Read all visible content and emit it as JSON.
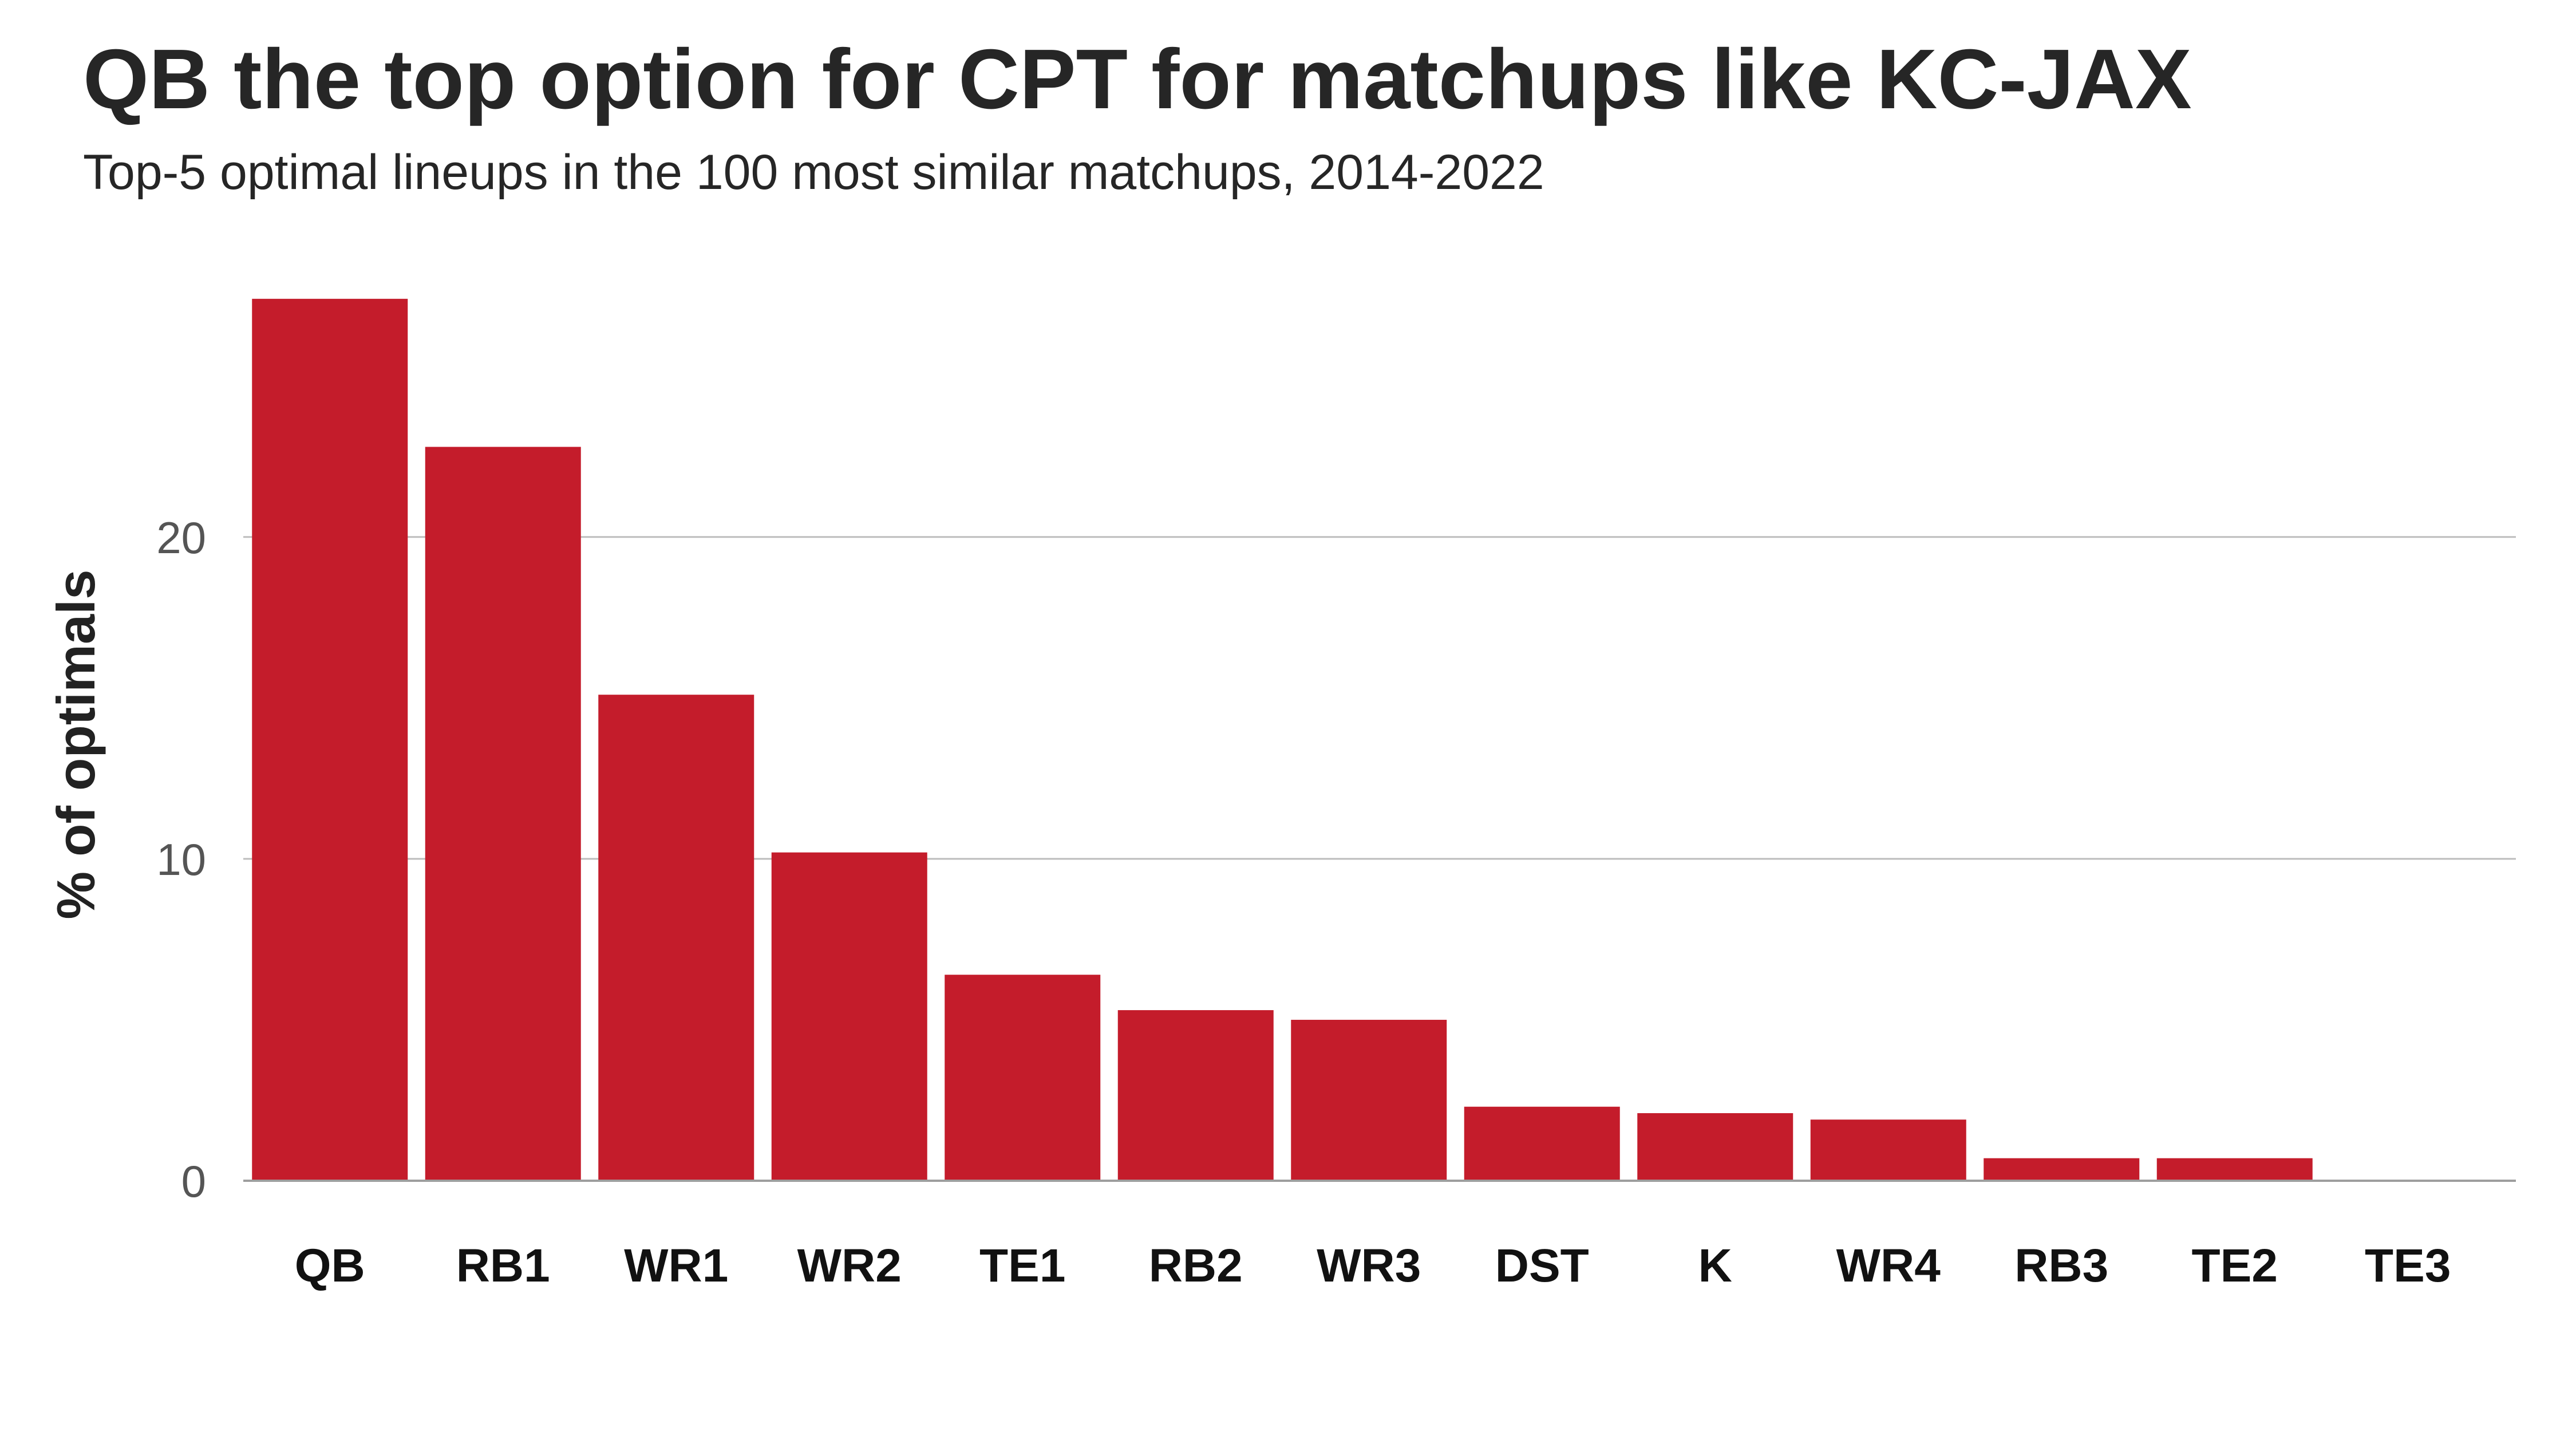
{
  "chart_data": {
    "type": "bar",
    "title": "QB the top option for CPT for matchups like KC-JAX",
    "subtitle": "Top-5 optimal lineups in the 100 most similar matchups, 2014-2022",
    "xlabel": "",
    "ylabel": "% of optimals",
    "categories": [
      "QB",
      "RB1",
      "WR1",
      "WR2",
      "TE1",
      "RB2",
      "WR3",
      "DST",
      "K",
      "WR4",
      "RB3",
      "TE2",
      "TE3"
    ],
    "values": [
      27.4,
      22.8,
      15.1,
      10.2,
      6.4,
      5.3,
      5.0,
      2.3,
      2.1,
      1.9,
      0.7,
      0.7,
      0
    ],
    "ylim": [
      0,
      28.5
    ],
    "yticks": [
      0,
      10,
      20
    ],
    "grid": "horizontal",
    "legend": "none",
    "colors": {
      "bar": "#c41c2b",
      "grid": "#bdbdbd"
    }
  }
}
